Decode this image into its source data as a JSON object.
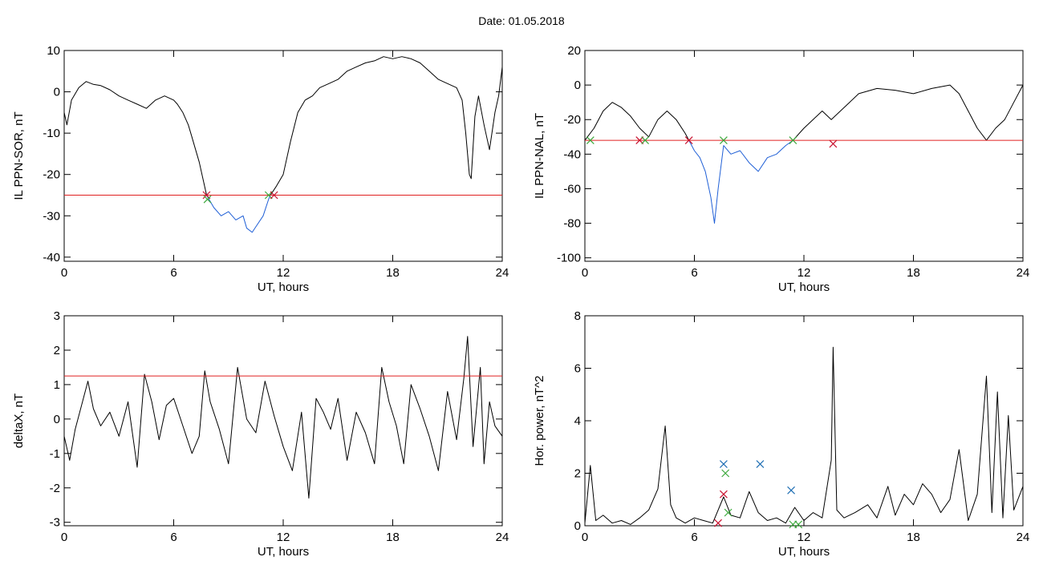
{
  "title": "Date:  01.05.2018",
  "colors": {
    "axis": "#000000",
    "trace": "#000000",
    "blue": "#1f5fd6",
    "threshold": "#e02020",
    "green": "#3aa83a",
    "red_mark": "#c8102e",
    "blue_mark": "#1f6fb4"
  },
  "chart_data": [
    {
      "type": "line",
      "xlabel": "UT, hours",
      "ylabel": "IL PPN-SOR, nT",
      "xlim": [
        0,
        24
      ],
      "ylim": [
        -41,
        10
      ],
      "xticks": [
        0,
        6,
        12,
        18,
        24
      ],
      "yticks": [
        -40,
        -30,
        -20,
        -10,
        0,
        10
      ],
      "threshold": -25,
      "series": [
        {
          "color": "black",
          "points": [
            [
              0,
              -5
            ],
            [
              0.15,
              -8
            ],
            [
              0.4,
              -2
            ],
            [
              0.8,
              1
            ],
            [
              1.2,
              2.5
            ],
            [
              1.6,
              1.8
            ],
            [
              2,
              1.5
            ],
            [
              2.5,
              0.5
            ],
            [
              3,
              -1
            ],
            [
              3.5,
              -2
            ],
            [
              4,
              -3
            ],
            [
              4.5,
              -4
            ],
            [
              5,
              -2
            ],
            [
              5.5,
              -1
            ],
            [
              6,
              -2
            ],
            [
              6.2,
              -3
            ],
            [
              6.5,
              -5
            ],
            [
              6.8,
              -8
            ],
            [
              7,
              -11
            ],
            [
              7.2,
              -14
            ],
            [
              7.4,
              -17
            ],
            [
              7.6,
              -21
            ],
            [
              7.8,
              -25
            ]
          ]
        },
        {
          "color": "blue",
          "points": [
            [
              7.8,
              -25
            ],
            [
              8.2,
              -28
            ],
            [
              8.6,
              -30
            ],
            [
              9,
              -29
            ],
            [
              9.4,
              -31
            ],
            [
              9.8,
              -30
            ],
            [
              10,
              -33
            ],
            [
              10.3,
              -34
            ],
            [
              10.6,
              -32
            ],
            [
              10.9,
              -30
            ],
            [
              11.2,
              -26
            ],
            [
              11.3,
              -25
            ]
          ]
        },
        {
          "color": "black",
          "points": [
            [
              11.3,
              -25
            ],
            [
              11.6,
              -23
            ],
            [
              12,
              -20
            ],
            [
              12.4,
              -12
            ],
            [
              12.8,
              -5
            ],
            [
              13.2,
              -2
            ],
            [
              13.6,
              -1
            ],
            [
              14,
              1
            ],
            [
              14.5,
              2
            ],
            [
              15,
              3
            ],
            [
              15.5,
              5
            ],
            [
              16,
              6
            ],
            [
              16.5,
              7
            ],
            [
              17,
              7.5
            ],
            [
              17.5,
              8.5
            ],
            [
              18,
              8
            ],
            [
              18.5,
              8.5
            ],
            [
              19,
              8
            ],
            [
              19.5,
              7
            ],
            [
              20,
              5
            ],
            [
              20.5,
              3
            ],
            [
              21,
              2
            ],
            [
              21.5,
              1
            ],
            [
              21.8,
              -2
            ],
            [
              22,
              -10
            ],
            [
              22.2,
              -20
            ],
            [
              22.3,
              -21
            ],
            [
              22.5,
              -6
            ],
            [
              22.7,
              -1
            ],
            [
              23,
              -8
            ],
            [
              23.3,
              -14
            ],
            [
              23.6,
              -5
            ],
            [
              23.8,
              -1
            ],
            [
              24,
              6
            ]
          ]
        }
      ],
      "markers": [
        {
          "x": 7.8,
          "y": -25,
          "color": "red"
        },
        {
          "x": 7.85,
          "y": -26,
          "color": "green"
        },
        {
          "x": 11.2,
          "y": -25,
          "color": "green"
        },
        {
          "x": 11.5,
          "y": -25,
          "color": "red"
        }
      ]
    },
    {
      "type": "line",
      "xlabel": "UT, hours",
      "ylabel": "IL PPN-NAL, nT",
      "xlim": [
        0,
        24
      ],
      "ylim": [
        -102,
        20
      ],
      "xticks": [
        0,
        6,
        12,
        18,
        24
      ],
      "yticks": [
        -100,
        -80,
        -60,
        -40,
        -20,
        0,
        20
      ],
      "threshold": -32,
      "series": [
        {
          "color": "black",
          "points": [
            [
              0,
              -32
            ],
            [
              0.5,
              -25
            ],
            [
              1,
              -15
            ],
            [
              1.5,
              -10
            ],
            [
              2,
              -13
            ],
            [
              2.5,
              -18
            ],
            [
              3,
              -25
            ],
            [
              3.5,
              -30
            ],
            [
              4,
              -20
            ],
            [
              4.5,
              -15
            ],
            [
              5,
              -20
            ],
            [
              5.5,
              -28
            ],
            [
              5.7,
              -32
            ]
          ]
        },
        {
          "color": "blue",
          "points": [
            [
              5.7,
              -32
            ],
            [
              6,
              -38
            ],
            [
              6.3,
              -42
            ],
            [
              6.6,
              -50
            ],
            [
              6.9,
              -65
            ],
            [
              7.1,
              -80
            ],
            [
              7.3,
              -60
            ],
            [
              7.6,
              -35
            ],
            [
              8,
              -40
            ],
            [
              8.5,
              -38
            ],
            [
              9,
              -45
            ],
            [
              9.5,
              -50
            ],
            [
              10,
              -42
            ],
            [
              10.5,
              -40
            ],
            [
              11,
              -35
            ],
            [
              11.4,
              -32
            ]
          ]
        },
        {
          "color": "black",
          "points": [
            [
              11.4,
              -32
            ],
            [
              12,
              -25
            ],
            [
              12.5,
              -20
            ],
            [
              13,
              -15
            ],
            [
              13.5,
              -20
            ],
            [
              14,
              -15
            ],
            [
              14.5,
              -10
            ],
            [
              15,
              -5
            ],
            [
              16,
              -2
            ],
            [
              17,
              -3
            ],
            [
              18,
              -5
            ],
            [
              19,
              -2
            ],
            [
              20,
              0
            ],
            [
              20.5,
              -5
            ],
            [
              21,
              -15
            ],
            [
              21.5,
              -25
            ],
            [
              22,
              -32
            ],
            [
              22.5,
              -25
            ],
            [
              23,
              -20
            ],
            [
              23.5,
              -10
            ],
            [
              24,
              0
            ]
          ]
        }
      ],
      "markers": [
        {
          "x": 0.3,
          "y": -32,
          "color": "green"
        },
        {
          "x": 3,
          "y": -32,
          "color": "red"
        },
        {
          "x": 3.3,
          "y": -32,
          "color": "green"
        },
        {
          "x": 5.7,
          "y": -32,
          "color": "red"
        },
        {
          "x": 7.6,
          "y": -32,
          "color": "green"
        },
        {
          "x": 11.4,
          "y": -32,
          "color": "green"
        },
        {
          "x": 13.6,
          "y": -34,
          "color": "red"
        }
      ]
    },
    {
      "type": "line",
      "xlabel": "UT, hours",
      "ylabel": "deltaX, nT",
      "xlim": [
        0,
        24
      ],
      "ylim": [
        -3.1,
        3
      ],
      "xticks": [
        0,
        6,
        12,
        18,
        24
      ],
      "yticks": [
        -3,
        -2,
        -1,
        0,
        1,
        2,
        3
      ],
      "threshold": 1.25,
      "series": [
        {
          "color": "black",
          "points": [
            [
              0,
              -0.5
            ],
            [
              0.3,
              -1.2
            ],
            [
              0.6,
              -0.3
            ],
            [
              1,
              0.5
            ],
            [
              1.3,
              1.1
            ],
            [
              1.6,
              0.3
            ],
            [
              2,
              -0.2
            ],
            [
              2.5,
              0.2
            ],
            [
              3,
              -0.5
            ],
            [
              3.5,
              0.5
            ],
            [
              4,
              -1.4
            ],
            [
              4.4,
              1.3
            ],
            [
              4.8,
              0.5
            ],
            [
              5.2,
              -0.6
            ],
            [
              5.6,
              0.4
            ],
            [
              6,
              0.6
            ],
            [
              6.5,
              -0.2
            ],
            [
              7,
              -1
            ],
            [
              7.4,
              -0.5
            ],
            [
              7.7,
              1.4
            ],
            [
              8,
              0.5
            ],
            [
              8.5,
              -0.3
            ],
            [
              9,
              -1.3
            ],
            [
              9.5,
              1.5
            ],
            [
              10,
              0
            ],
            [
              10.5,
              -0.4
            ],
            [
              11,
              1.1
            ],
            [
              11.5,
              0.1
            ],
            [
              12,
              -0.8
            ],
            [
              12.5,
              -1.5
            ],
            [
              13,
              0.2
            ],
            [
              13.4,
              -2.3
            ],
            [
              13.8,
              0.6
            ],
            [
              14.2,
              0.2
            ],
            [
              14.6,
              -0.3
            ],
            [
              15,
              0.6
            ],
            [
              15.5,
              -1.2
            ],
            [
              16,
              0.2
            ],
            [
              16.5,
              -0.4
            ],
            [
              17,
              -1.3
            ],
            [
              17.4,
              1.5
            ],
            [
              17.8,
              0.5
            ],
            [
              18.2,
              -0.2
            ],
            [
              18.6,
              -1.3
            ],
            [
              19,
              1
            ],
            [
              19.5,
              0.3
            ],
            [
              20,
              -0.5
            ],
            [
              20.5,
              -1.5
            ],
            [
              21,
              0.8
            ],
            [
              21.5,
              -0.6
            ],
            [
              21.9,
              1.2
            ],
            [
              22.1,
              2.4
            ],
            [
              22.4,
              -0.8
            ],
            [
              22.8,
              1.5
            ],
            [
              23,
              -1.3
            ],
            [
              23.3,
              0.5
            ],
            [
              23.6,
              -0.2
            ],
            [
              24,
              -0.5
            ]
          ]
        }
      ],
      "markers": []
    },
    {
      "type": "line",
      "xlabel": "UT, hours",
      "ylabel": "Hor. power, nT^2",
      "xlim": [
        0,
        24
      ],
      "ylim": [
        0,
        8
      ],
      "xticks": [
        0,
        6,
        12,
        18,
        24
      ],
      "yticks": [
        0,
        2,
        4,
        6,
        8
      ],
      "series": [
        {
          "color": "black",
          "points": [
            [
              0,
              0.1
            ],
            [
              0.3,
              2.3
            ],
            [
              0.6,
              0.2
            ],
            [
              1,
              0.4
            ],
            [
              1.5,
              0.1
            ],
            [
              2,
              0.2
            ],
            [
              2.5,
              0.05
            ],
            [
              3,
              0.3
            ],
            [
              3.5,
              0.6
            ],
            [
              4,
              1.4
            ],
            [
              4.4,
              3.8
            ],
            [
              4.7,
              0.8
            ],
            [
              5,
              0.3
            ],
            [
              5.5,
              0.1
            ],
            [
              6,
              0.3
            ],
            [
              6.5,
              0.2
            ],
            [
              7,
              0.1
            ],
            [
              7.3,
              0.6
            ],
            [
              7.6,
              1.1
            ],
            [
              8,
              0.4
            ],
            [
              8.5,
              0.3
            ],
            [
              9,
              1.3
            ],
            [
              9.5,
              0.5
            ],
            [
              10,
              0.2
            ],
            [
              10.5,
              0.3
            ],
            [
              11,
              0.1
            ],
            [
              11.5,
              0.7
            ],
            [
              12,
              0.2
            ],
            [
              12.5,
              0.5
            ],
            [
              13,
              0.3
            ],
            [
              13.5,
              2.5
            ],
            [
              13.6,
              6.8
            ],
            [
              13.8,
              0.6
            ],
            [
              14.2,
              0.3
            ],
            [
              14.8,
              0.5
            ],
            [
              15.5,
              0.8
            ],
            [
              16,
              0.3
            ],
            [
              16.6,
              1.5
            ],
            [
              17,
              0.4
            ],
            [
              17.5,
              1.2
            ],
            [
              18,
              0.8
            ],
            [
              18.5,
              1.6
            ],
            [
              19,
              1.2
            ],
            [
              19.5,
              0.5
            ],
            [
              20,
              1
            ],
            [
              20.5,
              2.9
            ],
            [
              21,
              0.2
            ],
            [
              21.5,
              1.2
            ],
            [
              22,
              5.7
            ],
            [
              22.3,
              0.5
            ],
            [
              22.6,
              5.1
            ],
            [
              22.9,
              0.3
            ],
            [
              23.2,
              4.2
            ],
            [
              23.5,
              0.6
            ],
            [
              24,
              1.5
            ]
          ]
        }
      ],
      "markers": [
        {
          "x": 7.6,
          "y": 2.35,
          "color": "blue"
        },
        {
          "x": 7.7,
          "y": 2.0,
          "color": "green"
        },
        {
          "x": 7.6,
          "y": 1.2,
          "color": "red"
        },
        {
          "x": 7.3,
          "y": 0.1,
          "color": "red"
        },
        {
          "x": 7.85,
          "y": 0.5,
          "color": "green"
        },
        {
          "x": 9.6,
          "y": 2.35,
          "color": "blue"
        },
        {
          "x": 11.3,
          "y": 1.35,
          "color": "blue"
        },
        {
          "x": 11.4,
          "y": 0.05,
          "color": "green"
        },
        {
          "x": 11.7,
          "y": 0.05,
          "color": "green"
        }
      ]
    }
  ]
}
